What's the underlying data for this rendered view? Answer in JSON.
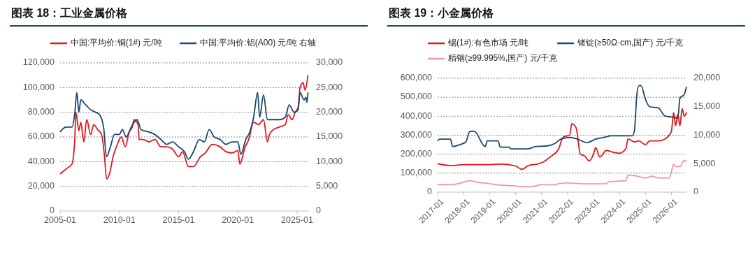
{
  "chart_data": [
    {
      "type": "line",
      "title": "图表 18：工业金属价格",
      "legend": "top",
      "grid": "y",
      "xlim": [
        "2005-01",
        "2026-01"
      ],
      "xticks": [
        "2005-01",
        "2010-01",
        "2015-01",
        "2020-01",
        "2025-01"
      ],
      "ylim": [
        0,
        120000
      ],
      "yticks": [
        {
          "value": 0,
          "label": "0"
        },
        {
          "value": 20000,
          "label": "20,000"
        },
        {
          "value": 40000,
          "label": "40,000"
        },
        {
          "value": 60000,
          "label": "60,000"
        },
        {
          "value": 80000,
          "label": "80,000"
        },
        {
          "value": 100000,
          "label": "100,000"
        },
        {
          "value": 120000,
          "label": "120,000"
        }
      ],
      "y2lim": [
        0,
        30000
      ],
      "y2ticks": [
        {
          "value": 0,
          "label": "0"
        },
        {
          "value": 5000,
          "label": "5,000"
        },
        {
          "value": 10000,
          "label": "10,000"
        },
        {
          "value": 15000,
          "label": "15,000"
        },
        {
          "value": 20000,
          "label": "20,000"
        },
        {
          "value": 25000,
          "label": "25,000"
        },
        {
          "value": 30000,
          "label": "30,000"
        }
      ],
      "series": [
        {
          "name": "中国:平均价:铜(1#) 元/吨",
          "color": "#e8141b",
          "x": [
            "2005-01",
            "2005-07",
            "2006-01",
            "2006-04",
            "2006-05",
            "2006-08",
            "2006-10",
            "2007-01",
            "2007-04",
            "2007-08",
            "2007-11",
            "2008-03",
            "2008-07",
            "2008-10",
            "2008-12",
            "2009-03",
            "2009-07",
            "2009-10",
            "2010-03",
            "2010-07",
            "2010-11",
            "2011-02",
            "2011-04",
            "2011-08",
            "2011-09",
            "2012-01",
            "2012-07",
            "2013-01",
            "2013-07",
            "2014-01",
            "2014-07",
            "2015-01",
            "2015-05",
            "2015-11",
            "2016-04",
            "2016-11",
            "2017-04",
            "2017-11",
            "2018-07",
            "2019-01",
            "2019-07",
            "2020-01",
            "2020-03",
            "2020-08",
            "2020-12",
            "2021-05",
            "2021-10",
            "2022-03",
            "2022-07",
            "2022-09",
            "2023-01",
            "2023-07",
            "2024-01",
            "2024-04",
            "2024-08",
            "2024-11",
            "2025-02",
            "2025-04",
            "2025-07",
            "2025-09",
            "2025-12"
          ],
          "values": [
            30000,
            34000,
            38000,
            60000,
            80000,
            65000,
            72000,
            56000,
            74000,
            62000,
            70000,
            66000,
            62000,
            44000,
            26000,
            30000,
            45000,
            52000,
            60000,
            52000,
            64000,
            68000,
            74000,
            70000,
            58000,
            58000,
            56000,
            58000,
            52000,
            52000,
            50000,
            44000,
            48000,
            36000,
            36000,
            44000,
            47000,
            54000,
            52000,
            48000,
            47000,
            49000,
            38000,
            51000,
            58000,
            72000,
            70000,
            74000,
            56000,
            62000,
            66000,
            68000,
            70000,
            78000,
            74000,
            80000,
            84000,
            100000,
            104000,
            98000,
            110000
          ]
        },
        {
          "name": "中国:平均价:铝(A00) 元/吨 右轴",
          "color": "#17486e",
          "axis": "y2",
          "x": [
            "2005-01",
            "2005-07",
            "2006-01",
            "2006-04",
            "2006-06",
            "2006-08",
            "2006-10",
            "2007-03",
            "2007-08",
            "2008-01",
            "2008-05",
            "2008-09",
            "2008-12",
            "2009-04",
            "2009-08",
            "2010-01",
            "2010-04",
            "2010-08",
            "2011-01",
            "2011-07",
            "2011-11",
            "2012-07",
            "2013-01",
            "2013-07",
            "2014-01",
            "2014-07",
            "2015-01",
            "2015-07",
            "2015-11",
            "2016-04",
            "2016-10",
            "2017-03",
            "2017-08",
            "2018-01",
            "2018-07",
            "2019-01",
            "2019-07",
            "2020-01",
            "2020-04",
            "2020-09",
            "2021-01",
            "2021-05",
            "2021-09",
            "2021-11",
            "2022-03",
            "2022-07",
            "2022-10",
            "2023-03",
            "2023-08",
            "2024-01",
            "2024-05",
            "2024-10",
            "2025-02",
            "2025-04",
            "2025-08",
            "2025-10",
            "2025-11",
            "2025-12"
          ],
          "values": [
            16000,
            17000,
            17000,
            20000,
            24000,
            20000,
            22500,
            21500,
            20500,
            20000,
            19500,
            17000,
            11000,
            13000,
            15500,
            15500,
            16500,
            15000,
            17000,
            18500,
            16500,
            16000,
            15500,
            14500,
            13500,
            14000,
            13000,
            12000,
            10500,
            12000,
            14500,
            14000,
            16500,
            15000,
            14500,
            13500,
            14000,
            14000,
            11500,
            14500,
            16000,
            19000,
            24000,
            19000,
            23500,
            18500,
            18500,
            18500,
            18500,
            19000,
            21500,
            20000,
            20500,
            24000,
            22500,
            23000,
            22000,
            24000
          ]
        }
      ]
    },
    {
      "type": "line",
      "title": "图表 19：小金属价格",
      "legend": "top",
      "grid": "y",
      "xlim": [
        "2017-01",
        "2026-08"
      ],
      "xticks": [
        "2017-01",
        "2018-01",
        "2019-01",
        "2020-01",
        "2021-01",
        "2022-01",
        "2023-01",
        "2024-01",
        "2025-01",
        "2026-01"
      ],
      "ylim": [
        0,
        600000
      ],
      "yticks": [
        {
          "value": 0,
          "label": "0"
        },
        {
          "value": 100000,
          "label": "100,000"
        },
        {
          "value": 200000,
          "label": "200,000"
        },
        {
          "value": 300000,
          "label": "300,000"
        },
        {
          "value": 400000,
          "label": "400,000"
        },
        {
          "value": 500000,
          "label": "500,000"
        },
        {
          "value": 600000,
          "label": "600,000"
        }
      ],
      "y2lim": [
        0,
        20000
      ],
      "y2ticks": [
        {
          "value": 0,
          "label": "0"
        },
        {
          "value": 5000,
          "label": "5,000"
        },
        {
          "value": 10000,
          "label": "10,000"
        },
        {
          "value": 15000,
          "label": "15,000"
        },
        {
          "value": 20000,
          "label": "20,000"
        }
      ],
      "series": [
        {
          "name": "锡(1#):有色市场 元/吨",
          "color": "#e8141b",
          "x": [
            "2017-01",
            "2017-07",
            "2018-01",
            "2018-07",
            "2019-01",
            "2019-07",
            "2020-01",
            "2020-04",
            "2020-07",
            "2020-11",
            "2021-02",
            "2021-05",
            "2021-09",
            "2021-11",
            "2022-02",
            "2022-03",
            "2022-05",
            "2022-07",
            "2022-09",
            "2022-11",
            "2023-01",
            "2023-02",
            "2023-04",
            "2023-07",
            "2023-10",
            "2024-01",
            "2024-04",
            "2024-05",
            "2024-08",
            "2024-10",
            "2025-01",
            "2025-03",
            "2025-07",
            "2025-10",
            "2026-01",
            "2026-02",
            "2026-03",
            "2026-04",
            "2026-05",
            "2026-06",
            "2026-07",
            "2026-08"
          ],
          "values": [
            150000,
            140000,
            145000,
            145000,
            145000,
            148000,
            138000,
            120000,
            140000,
            148000,
            160000,
            185000,
            230000,
            290000,
            300000,
            360000,
            340000,
            200000,
            190000,
            165000,
            200000,
            235000,
            185000,
            220000,
            210000,
            205000,
            230000,
            280000,
            265000,
            270000,
            250000,
            270000,
            270000,
            280000,
            320000,
            420000,
            350000,
            410000,
            350000,
            440000,
            400000,
            420000
          ]
        },
        {
          "name": "锗锭(≥50Ω·cm,国产) 元/千克",
          "color": "#17486e",
          "axis": "y2",
          "x": [
            "2017-01",
            "2017-02",
            "2017-07",
            "2017-08",
            "2017-11",
            "2018-02",
            "2018-04",
            "2018-06",
            "2018-11",
            "2018-12",
            "2019-05",
            "2019-06",
            "2019-10",
            "2019-11",
            "2020-07",
            "2020-10",
            "2021-03",
            "2021-07",
            "2021-10",
            "2022-02",
            "2022-05",
            "2022-10",
            "2023-02",
            "2023-07",
            "2023-09",
            "2024-01",
            "2024-07",
            "2024-08",
            "2024-09",
            "2024-10",
            "2024-11",
            "2025-01",
            "2025-03",
            "2025-07",
            "2025-10",
            "2026-01",
            "2026-04",
            "2026-05",
            "2026-07",
            "2026-08"
          ],
          "values": [
            9000,
            9300,
            9300,
            8000,
            8300,
            8800,
            10700,
            10700,
            8000,
            9000,
            9000,
            7900,
            7900,
            7600,
            7600,
            8000,
            8100,
            8500,
            9300,
            9600,
            9400,
            8700,
            9300,
            9700,
            9900,
            9900,
            9900,
            11000,
            17000,
            18700,
            18700,
            16300,
            15000,
            14800,
            13400,
            13200,
            13000,
            16500,
            17200,
            18500
          ]
        },
        {
          "name": "精铟(≥99.995%,国产) 元/千克",
          "color": "#f4989c",
          "axis": "y2",
          "x": [
            "2017-01",
            "2017-07",
            "2017-10",
            "2018-01",
            "2018-04",
            "2018-08",
            "2019-01",
            "2019-07",
            "2020-01",
            "2020-04",
            "2020-09",
            "2021-01",
            "2021-07",
            "2021-09",
            "2022-01",
            "2022-07",
            "2023-01",
            "2023-07",
            "2023-08",
            "2024-01",
            "2024-04",
            "2024-05",
            "2024-08",
            "2025-01",
            "2025-04",
            "2025-07",
            "2025-12",
            "2026-01",
            "2026-02",
            "2026-03",
            "2026-05",
            "2026-07",
            "2026-08"
          ],
          "values": [
            1350,
            1300,
            1450,
            1750,
            2000,
            1700,
            1500,
            1200,
            1100,
            950,
            1000,
            1300,
            1300,
            1500,
            1600,
            1500,
            1450,
            1500,
            1800,
            1950,
            2000,
            3000,
            2900,
            2500,
            2800,
            2500,
            2500,
            3600,
            4900,
            4500,
            4500,
            5600,
            5300
          ]
        }
      ]
    }
  ]
}
